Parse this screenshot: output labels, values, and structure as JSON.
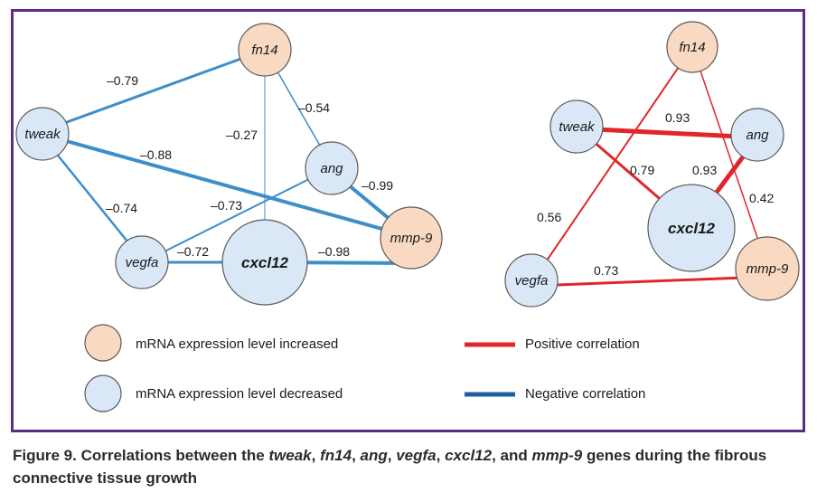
{
  "colors": {
    "frame": "#5b2d86",
    "negative": "#3d8ec9",
    "positive": "#e0262b",
    "increased_fill": "#f9d9c2",
    "decreased_fill": "#d9e7f7",
    "node_stroke": "#5a5a5a"
  },
  "left_network": {
    "nodes": {
      "fn14": "fn14",
      "tweak": "tweak",
      "ang": "ang",
      "vegfa": "vegfa",
      "cxcl12": "cxcl12",
      "mmp9": "mmp-9"
    },
    "edges": [
      {
        "from": "tweak",
        "to": "fn14",
        "r": -0.79,
        "label": "–0.79"
      },
      {
        "from": "fn14",
        "to": "ang",
        "r": -0.54,
        "label": "–0.54"
      },
      {
        "from": "fn14",
        "to": "cxcl12",
        "r": -0.27,
        "label": "–0.27"
      },
      {
        "from": "tweak",
        "to": "mmp-9",
        "r": -0.88,
        "label": "–0.88"
      },
      {
        "from": "ang",
        "to": "mmp-9",
        "r": -0.99,
        "label": "–0.99"
      },
      {
        "from": "tweak",
        "to": "vegfa",
        "r": -0.74,
        "label": "–0.74"
      },
      {
        "from": "vegfa",
        "to": "ang",
        "r": -0.73,
        "label": "–0.73"
      },
      {
        "from": "vegfa",
        "to": "cxcl12",
        "r": -0.72,
        "label": "–0.72"
      },
      {
        "from": "cxcl12",
        "to": "mmp-9",
        "r": -0.98,
        "label": "–0.98"
      }
    ]
  },
  "right_network": {
    "nodes": {
      "fn14": "fn14",
      "tweak": "tweak",
      "ang": "ang",
      "vegfa": "vegfa",
      "cxcl12": "cxcl12",
      "mmp9": "mmp-9"
    },
    "edges": [
      {
        "from": "tweak",
        "to": "ang",
        "r": 0.93,
        "label": "0.93"
      },
      {
        "from": "tweak",
        "to": "cxcl12",
        "r": 0.79,
        "label": "0.79"
      },
      {
        "from": "ang",
        "to": "cxcl12",
        "r": 0.93,
        "label": "0.93"
      },
      {
        "from": "fn14",
        "to": "mmp-9",
        "r": 0.42,
        "label": "0.42"
      },
      {
        "from": "vegfa",
        "to": "fn14",
        "r": 0.56,
        "label": "0.56"
      },
      {
        "from": "vegfa",
        "to": "mmp-9",
        "r": 0.73,
        "label": "0.73"
      }
    ]
  },
  "legend": {
    "increased": "mRNA expression level increased",
    "decreased": "mRNA expression level decreased",
    "positive": "Positive correlation",
    "negative": "Negative correlation"
  },
  "caption": {
    "lead": "Figure 9. Correlations between the ",
    "g1": "tweak",
    "s1": ", ",
    "g2": "fn14",
    "s2": ", ",
    "g3": "ang",
    "s3": ", ",
    "g4": "vegfa",
    "s4": ", ",
    "g5": "cxcl12",
    "s5": ", and ",
    "g6": "mmp-9",
    "tail": " genes during the fibrous connective tissue growth"
  }
}
